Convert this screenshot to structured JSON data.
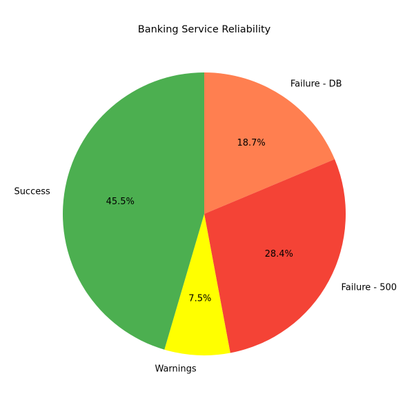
{
  "chart_data": {
    "type": "pie",
    "title": "Banking Service Reliability",
    "categories": [
      "Failure - DB",
      "Failure - 500",
      "Warnings",
      "Success"
    ],
    "values": [
      18.7,
      28.4,
      7.5,
      45.5
    ],
    "percent_labels": [
      "18.7%",
      "28.4%",
      "7.5%",
      "45.5%"
    ],
    "colors": [
      "#ff7f50",
      "#f44336",
      "#ffff00",
      "#4caf50"
    ],
    "start_angle_deg": 90,
    "direction": "clockwise"
  }
}
